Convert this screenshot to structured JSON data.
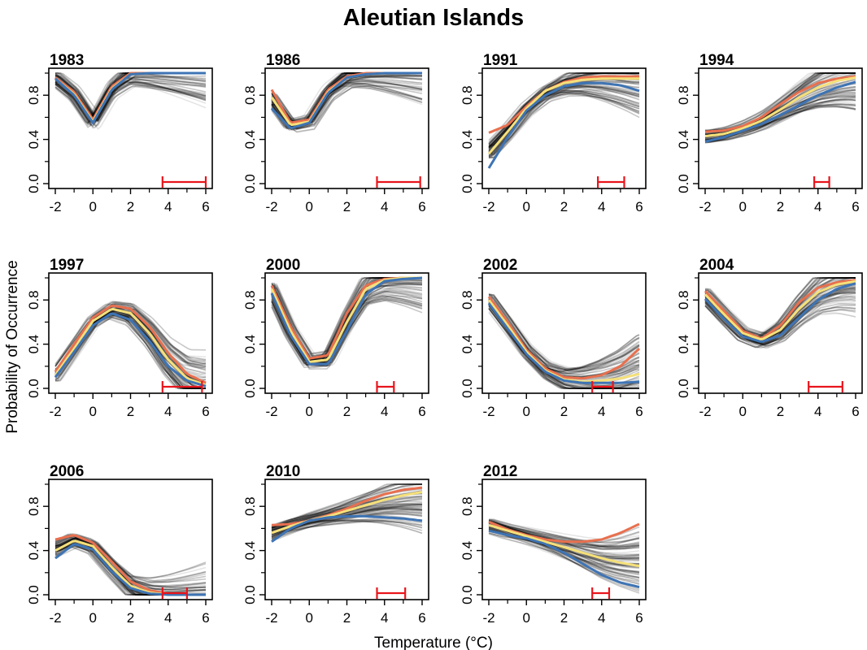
{
  "figure": {
    "title": "Aleutian Islands",
    "ylabel": "Probability of Occurrence",
    "xlabel": "Temperature (°C)"
  },
  "colors": {
    "curve_orange": "#E8704F",
    "curve_yellow": "#F5E07A",
    "curve_blue": "#3E74B4",
    "range_bar": "#E8141B",
    "posterior_draws": "#000000"
  },
  "chart_data": [
    {
      "type": "line",
      "title": "1983",
      "xlim": [
        -2,
        6
      ],
      "ylim": [
        0,
        1
      ],
      "xticks": [
        -2,
        0,
        2,
        4,
        6
      ],
      "yticks": [
        0.0,
        0.4,
        0.8
      ],
      "xtick_labels": [
        "-2",
        "0",
        "2",
        "4",
        "6"
      ],
      "ytick_labels": [
        "0.0",
        "0.4",
        "0.8"
      ],
      "x": [
        -2,
        -1,
        0,
        1,
        2,
        3,
        4,
        5,
        6
      ],
      "series": [
        {
          "values": [
            0.96,
            0.83,
            0.58,
            0.88,
            1.0,
            1.0,
            1.0,
            1.0,
            1.0
          ]
        },
        {
          "values": [
            0.95,
            0.81,
            0.56,
            0.86,
            0.99,
            1.0,
            1.0,
            1.0,
            1.0
          ]
        },
        {
          "values": [
            0.95,
            0.8,
            0.55,
            0.85,
            0.99,
            1.0,
            1.0,
            1.0,
            1.0
          ]
        }
      ],
      "observed_range": [
        3.7,
        6.0
      ]
    },
    {
      "type": "line",
      "title": "1986",
      "xlim": [
        -2,
        6
      ],
      "ylim": [
        0,
        1
      ],
      "xticks": [
        -2,
        0,
        2,
        4,
        6
      ],
      "yticks": [
        0.0,
        0.4,
        0.8
      ],
      "xtick_labels": [
        "-2",
        "0",
        "2",
        "4",
        "6"
      ],
      "ytick_labels": [
        "0.0",
        "0.4",
        "0.8"
      ],
      "x": [
        -2,
        -1,
        0,
        1,
        2,
        3,
        4,
        5,
        6
      ],
      "series": [
        {
          "values": [
            0.85,
            0.55,
            0.58,
            0.85,
            0.97,
            1.0,
            1.0,
            1.0,
            1.0
          ]
        },
        {
          "values": [
            0.78,
            0.53,
            0.56,
            0.83,
            0.96,
            0.99,
            1.0,
            1.0,
            1.0
          ]
        },
        {
          "values": [
            0.68,
            0.5,
            0.55,
            0.82,
            0.96,
            0.99,
            1.0,
            1.0,
            1.0
          ]
        }
      ],
      "observed_range": [
        3.6,
        5.9
      ]
    },
    {
      "type": "line",
      "title": "1991",
      "xlim": [
        -2,
        6
      ],
      "ylim": [
        0,
        1
      ],
      "xticks": [
        -2,
        0,
        2,
        4,
        6
      ],
      "yticks": [
        0.0,
        0.4,
        0.8
      ],
      "xtick_labels": [
        "-2",
        "0",
        "2",
        "4",
        "6"
      ],
      "ytick_labels": [
        "0.0",
        "0.4",
        "0.8"
      ],
      "x": [
        -2,
        -1,
        0,
        1,
        2,
        3,
        4,
        5,
        6
      ],
      "series": [
        {
          "values": [
            0.46,
            0.53,
            0.7,
            0.84,
            0.92,
            0.96,
            0.97,
            0.97,
            0.97
          ]
        },
        {
          "values": [
            0.27,
            0.47,
            0.68,
            0.84,
            0.91,
            0.94,
            0.95,
            0.95,
            0.95
          ]
        },
        {
          "values": [
            0.14,
            0.42,
            0.66,
            0.8,
            0.88,
            0.91,
            0.91,
            0.89,
            0.84
          ]
        }
      ],
      "observed_range": [
        3.8,
        5.2
      ]
    },
    {
      "type": "line",
      "title": "1994",
      "xlim": [
        -2,
        6
      ],
      "ylim": [
        0,
        1
      ],
      "xticks": [
        -2,
        0,
        2,
        4,
        6
      ],
      "yticks": [
        0.0,
        0.4,
        0.8
      ],
      "xtick_labels": [
        "-2",
        "0",
        "2",
        "4",
        "6"
      ],
      "ytick_labels": [
        "0.0",
        "0.4",
        "0.8"
      ],
      "x": [
        -2,
        -1,
        0,
        1,
        2,
        3,
        4,
        5,
        6
      ],
      "series": [
        {
          "values": [
            0.47,
            0.48,
            0.52,
            0.6,
            0.72,
            0.83,
            0.91,
            0.95,
            0.97
          ]
        },
        {
          "values": [
            0.43,
            0.45,
            0.5,
            0.57,
            0.67,
            0.78,
            0.87,
            0.93,
            0.96
          ]
        },
        {
          "values": [
            0.38,
            0.42,
            0.48,
            0.54,
            0.62,
            0.71,
            0.8,
            0.87,
            0.92
          ]
        }
      ],
      "observed_range": [
        3.8,
        4.6
      ]
    },
    {
      "type": "line",
      "title": "1997",
      "xlim": [
        -2,
        6
      ],
      "ylim": [
        0,
        1
      ],
      "xticks": [
        -2,
        0,
        2,
        4,
        6
      ],
      "yticks": [
        0.0,
        0.4,
        0.8
      ],
      "xtick_labels": [
        "-2",
        "0",
        "2",
        "4",
        "6"
      ],
      "ytick_labels": [
        "0.0",
        "0.4",
        "0.8"
      ],
      "x": [
        -2,
        -1,
        0,
        1,
        2,
        3,
        4,
        5,
        6
      ],
      "series": [
        {
          "values": [
            0.15,
            0.4,
            0.64,
            0.75,
            0.72,
            0.56,
            0.32,
            0.13,
            0.05
          ]
        },
        {
          "values": [
            0.12,
            0.36,
            0.61,
            0.72,
            0.68,
            0.5,
            0.26,
            0.09,
            0.03
          ]
        },
        {
          "values": [
            0.1,
            0.33,
            0.57,
            0.68,
            0.62,
            0.43,
            0.2,
            0.07,
            0.02
          ]
        }
      ],
      "observed_range": [
        3.7,
        5.8
      ]
    },
    {
      "type": "line",
      "title": "2000",
      "xlim": [
        -2,
        6
      ],
      "ylim": [
        0,
        1
      ],
      "xticks": [
        -2,
        0,
        2,
        4,
        6
      ],
      "yticks": [
        0.0,
        0.4,
        0.8
      ],
      "xtick_labels": [
        "-2",
        "0",
        "2",
        "4",
        "6"
      ],
      "ytick_labels": [
        "0.0",
        "0.4",
        "0.8"
      ],
      "x": [
        -2,
        -1,
        0,
        1,
        2,
        3,
        4,
        5,
        6
      ],
      "series": [
        {
          "values": [
            0.93,
            0.56,
            0.27,
            0.3,
            0.68,
            0.93,
            0.99,
            1.0,
            1.0
          ]
        },
        {
          "values": [
            0.9,
            0.52,
            0.24,
            0.26,
            0.6,
            0.9,
            0.98,
            1.0,
            1.0
          ]
        },
        {
          "values": [
            0.86,
            0.48,
            0.22,
            0.22,
            0.52,
            0.85,
            0.97,
            0.99,
            1.0
          ]
        }
      ],
      "observed_range": [
        3.6,
        4.5
      ]
    },
    {
      "type": "line",
      "title": "2002",
      "xlim": [
        -2,
        6
      ],
      "ylim": [
        0,
        1
      ],
      "xticks": [
        -2,
        0,
        2,
        4,
        6
      ],
      "yticks": [
        0.0,
        0.4,
        0.8
      ],
      "xtick_labels": [
        "-2",
        "0",
        "2",
        "4",
        "6"
      ],
      "ytick_labels": [
        "0.0",
        "0.4",
        "0.8"
      ],
      "x": [
        -2,
        -1,
        0,
        1,
        2,
        3,
        4,
        5,
        6
      ],
      "series": [
        {
          "values": [
            0.83,
            0.6,
            0.35,
            0.18,
            0.1,
            0.09,
            0.12,
            0.2,
            0.36
          ]
        },
        {
          "values": [
            0.8,
            0.57,
            0.33,
            0.16,
            0.08,
            0.06,
            0.07,
            0.09,
            0.13
          ]
        },
        {
          "values": [
            0.77,
            0.54,
            0.31,
            0.15,
            0.07,
            0.05,
            0.05,
            0.05,
            0.06
          ]
        }
      ],
      "observed_range": [
        3.5,
        4.6
      ]
    },
    {
      "type": "line",
      "title": "2004",
      "xlim": [
        -2,
        6
      ],
      "ylim": [
        0,
        1
      ],
      "xticks": [
        -2,
        0,
        2,
        4,
        6
      ],
      "yticks": [
        0.0,
        0.4,
        0.8
      ],
      "xtick_labels": [
        "-2",
        "0",
        "2",
        "4",
        "6"
      ],
      "ytick_labels": [
        "0.0",
        "0.4",
        "0.8"
      ],
      "x": [
        -2,
        -1,
        0,
        1,
        2,
        3,
        4,
        5,
        6
      ],
      "series": [
        {
          "values": [
            0.88,
            0.7,
            0.52,
            0.45,
            0.57,
            0.78,
            0.91,
            0.96,
            0.98
          ]
        },
        {
          "values": [
            0.85,
            0.67,
            0.5,
            0.44,
            0.53,
            0.72,
            0.87,
            0.94,
            0.97
          ]
        },
        {
          "values": [
            0.81,
            0.63,
            0.47,
            0.42,
            0.48,
            0.64,
            0.8,
            0.9,
            0.95
          ]
        }
      ],
      "observed_range": [
        3.5,
        5.3
      ]
    },
    {
      "type": "line",
      "title": "2006",
      "xlim": [
        -2,
        6
      ],
      "ylim": [
        0,
        1
      ],
      "xticks": [
        -2,
        0,
        2,
        4,
        6
      ],
      "yticks": [
        0.0,
        0.4,
        0.8
      ],
      "xtick_labels": [
        "-2",
        "0",
        "2",
        "4",
        "6"
      ],
      "ytick_labels": [
        "0.0",
        "0.4",
        "0.8"
      ],
      "x": [
        -2,
        -1,
        0,
        1,
        2,
        3,
        4,
        5,
        6
      ],
      "series": [
        {
          "values": [
            0.5,
            0.54,
            0.47,
            0.3,
            0.12,
            0.04,
            0.01,
            0.0,
            0.0
          ]
        },
        {
          "values": [
            0.4,
            0.49,
            0.44,
            0.25,
            0.08,
            0.02,
            0.0,
            0.0,
            0.0
          ]
        },
        {
          "values": [
            0.33,
            0.46,
            0.41,
            0.21,
            0.06,
            0.01,
            0.0,
            0.0,
            0.0
          ]
        }
      ],
      "observed_range": [
        3.7,
        5.0
      ]
    },
    {
      "type": "line",
      "title": "2010",
      "xlim": [
        -2,
        6
      ],
      "ylim": [
        0,
        1
      ],
      "xticks": [
        -2,
        0,
        2,
        4,
        6
      ],
      "yticks": [
        0.0,
        0.4,
        0.8
      ],
      "xtick_labels": [
        "-2",
        "0",
        "2",
        "4",
        "6"
      ],
      "ytick_labels": [
        "0.0",
        "0.4",
        "0.8"
      ],
      "x": [
        -2,
        -1,
        0,
        1,
        2,
        3,
        4,
        5,
        6
      ],
      "series": [
        {
          "values": [
            0.63,
            0.64,
            0.67,
            0.72,
            0.78,
            0.85,
            0.91,
            0.95,
            0.97
          ]
        },
        {
          "values": [
            0.56,
            0.62,
            0.67,
            0.71,
            0.76,
            0.81,
            0.86,
            0.9,
            0.93
          ]
        },
        {
          "values": [
            0.48,
            0.6,
            0.67,
            0.7,
            0.71,
            0.71,
            0.7,
            0.69,
            0.67
          ]
        }
      ],
      "observed_range": [
        3.6,
        5.1
      ]
    },
    {
      "type": "line",
      "title": "2012",
      "xlim": [
        -2,
        6
      ],
      "ylim": [
        0,
        1
      ],
      "xticks": [
        -2,
        0,
        2,
        4,
        6
      ],
      "yticks": [
        0.0,
        0.4,
        0.8
      ],
      "xtick_labels": [
        "-2",
        "0",
        "2",
        "4",
        "6"
      ],
      "ytick_labels": [
        "0.0",
        "0.4",
        "0.8"
      ],
      "x": [
        -2,
        -1,
        0,
        1,
        2,
        3,
        4,
        5,
        6
      ],
      "series": [
        {
          "values": [
            0.66,
            0.59,
            0.54,
            0.5,
            0.48,
            0.48,
            0.5,
            0.56,
            0.64
          ]
        },
        {
          "values": [
            0.63,
            0.58,
            0.53,
            0.48,
            0.43,
            0.38,
            0.33,
            0.29,
            0.26
          ]
        },
        {
          "values": [
            0.58,
            0.54,
            0.51,
            0.46,
            0.38,
            0.28,
            0.18,
            0.11,
            0.07
          ]
        }
      ],
      "observed_range": [
        3.5,
        4.4
      ]
    }
  ]
}
